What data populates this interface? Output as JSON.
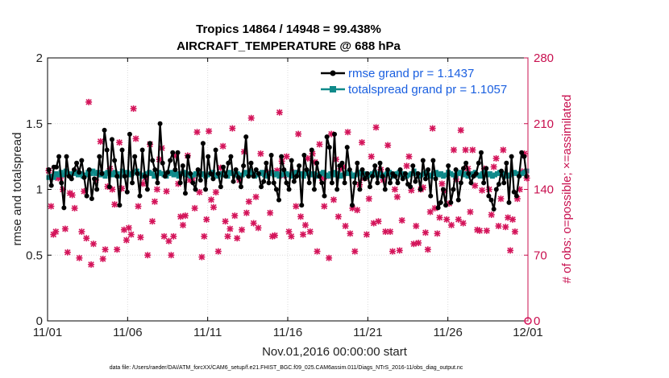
{
  "chart_data": {
    "type": "line",
    "title": "Tropics 14864 / 14948 = 99.438%",
    "subtitle": "AIRCRAFT_TEMPERATURE @ 688 hPa",
    "xlabel": "Nov.01,2016 00:00:00 start",
    "ylabel": "rmse and totalspread",
    "y2label": "# of obs: o=possible; ×=assimilated",
    "footer": "data file: /Users/raeder/DAI/ATM_forcXX/CAM6_setup/f.e21.FHIST_BGC.f09_025.CAM6assim.011/Diags_NTrS_2016-11/obs_diag_output.nc",
    "xlim": [
      0,
      30
    ],
    "ylim": [
      0,
      2
    ],
    "y2lim": [
      0,
      280
    ],
    "x_ticks": [
      0,
      5,
      10,
      15,
      20,
      25,
      30
    ],
    "x_tick_labels": [
      "11/01",
      "11/06",
      "11/11",
      "11/16",
      "11/21",
      "11/26",
      "12/01"
    ],
    "y_ticks": [
      0,
      0.5,
      1,
      1.5,
      2
    ],
    "y_tick_labels": [
      "0",
      "0.5",
      "1",
      "1.5",
      "2"
    ],
    "y2_ticks": [
      0,
      70,
      140,
      210,
      280
    ],
    "y2_tick_labels": [
      "0",
      "70",
      "140",
      "210",
      "280"
    ],
    "colors": {
      "rmse": "#000000",
      "spread": "#0f8a8a",
      "obs": "#d4145a",
      "legend_text": "#1a5fe0"
    },
    "series": [
      {
        "name": "rmse grand pr = 1.1437",
        "axis": "left",
        "values": [
          1.15,
          1.03,
          1.17,
          1.17,
          1.25,
          1.05,
          0.86,
          1.25,
          1.1,
          1.08,
          1.15,
          1.2,
          1.13,
          1.22,
          1.09,
          0.95,
          1.15,
          0.93,
          1.08,
          1.0,
          1.25,
          1.12,
          1.45,
          1.3,
          1.02,
          1.38,
          1.22,
          1.1,
          0.88,
          1.3,
          1.1,
          0.98,
          1.42,
          1.05,
          1.25,
          1.12,
          0.95,
          1.3,
          1.1,
          1.0,
          1.35,
          1.22,
          1.15,
          1.05,
          1.5,
          1.2,
          1.1,
          1.13,
          1.22,
          1.28,
          1.15,
          1.28,
          1.05,
          1.18,
          0.97,
          1.25,
          1.12,
          1.05,
          1.0,
          1.15,
          1.07,
          1.35,
          1.0,
          1.25,
          1.12,
          1.08,
          1.3,
          1.12,
          1.02,
          1.17,
          1.1,
          1.2,
          1.25,
          1.06,
          1.15,
          1.09,
          1.02,
          1.18,
          1.4,
          1.1,
          1.2,
          1.1,
          1.15,
          1.12,
          1.02,
          1.06,
          1.2,
          1.05,
          1.26,
          1.05,
          1.0,
          0.92,
          1.25,
          1.15,
          1.05,
          1.0,
          1.22,
          1.06,
          1.1,
          1.18,
          0.88,
          1.26,
          1.15,
          1.05,
          1.3,
          1.0,
          1.2,
          1.1,
          1.05,
          0.95,
          1.4,
          1.32,
          1.05,
          1.42,
          1.0,
          1.18,
          1.2,
          1.05,
          1.32,
          1.15,
          0.88,
          1.05,
          1.2,
          1.0,
          1.15,
          1.08,
          1.12,
          1.02,
          1.1,
          1.18,
          1.05,
          1.2,
          1.1,
          1.0,
          1.15,
          1.05,
          1.12,
          1.1,
          1.05,
          1.15,
          1.08,
          1.12,
          1.04,
          1.02,
          1.18,
          1.06,
          1.12,
          1.0,
          1.22,
          1.08,
          1.15,
          0.95,
          1.22,
          1.08,
          0.86,
          0.9,
          1.0,
          0.88,
          1.18,
          0.9,
          1.0,
          1.15,
          0.92,
          1.05,
          1.16,
          1.2,
          1.12,
          1.05,
          1.1,
          1.12,
          1.2,
          1.28,
          1.05,
          1.16,
          0.95,
          0.92,
          0.85,
          1.0,
          1.04,
          1.14,
          1.05,
          1.2,
          0.9,
          1.25,
          0.98,
          0.95,
          1.1,
          1.28,
          1.25,
          1.1
        ]
      },
      {
        "name": "totalspread grand pr = 1.1057",
        "axis": "left",
        "values": [
          1.09,
          1.1,
          1.09,
          1.12,
          1.11,
          1.13,
          1.11,
          1.14,
          1.12,
          1.1,
          1.12,
          1.13,
          1.11,
          1.12,
          1.1,
          1.11,
          1.13,
          1.12,
          1.14,
          1.12,
          1.13,
          1.11,
          1.12,
          1.1,
          1.13,
          1.12,
          1.11,
          1.13,
          1.12,
          1.1,
          1.14,
          1.12,
          1.13,
          1.11,
          1.12,
          1.13,
          1.14,
          1.12,
          1.1,
          1.11,
          1.12,
          1.13,
          1.12,
          1.1,
          1.11,
          1.13,
          1.12,
          1.11,
          1.1,
          1.12,
          1.13,
          1.11,
          1.12,
          1.1,
          1.12,
          1.13,
          1.11,
          1.12,
          1.1,
          1.11,
          1.12,
          1.13,
          1.11,
          1.12,
          1.1,
          1.11,
          1.12,
          1.13,
          1.11,
          1.1,
          1.12,
          1.11,
          1.12,
          1.1,
          1.13,
          1.12,
          1.11,
          1.12,
          1.1,
          1.11,
          1.13,
          1.12,
          1.14,
          1.12,
          1.1,
          1.11,
          1.12,
          1.13,
          1.11,
          1.1,
          1.12,
          1.13,
          1.11,
          1.12,
          1.1,
          1.11,
          1.13,
          1.12,
          1.11,
          1.1,
          1.12,
          1.13,
          1.11,
          1.12,
          1.1,
          1.12,
          1.13,
          1.11,
          1.12,
          1.1,
          1.11,
          1.12,
          1.13,
          1.11,
          1.1,
          1.12,
          1.13,
          1.11,
          1.12,
          1.1,
          1.11,
          1.12,
          1.13,
          1.12,
          1.1,
          1.11,
          1.12,
          1.13,
          1.11,
          1.12,
          1.1,
          1.11,
          1.12,
          1.13,
          1.11,
          1.12,
          1.1,
          1.11,
          1.12,
          1.13,
          1.11,
          1.1,
          1.12,
          1.13,
          1.11,
          1.12,
          1.1,
          1.11,
          1.12,
          1.14,
          1.12,
          1.1,
          1.11,
          1.12,
          1.13,
          1.11,
          1.1,
          1.12,
          1.13,
          1.11,
          1.12,
          1.1,
          1.11,
          1.13,
          1.12,
          1.11,
          1.1,
          1.12,
          1.13,
          1.11,
          1.12,
          1.1,
          1.11,
          1.12,
          1.13,
          1.11,
          1.1,
          1.12,
          1.13,
          1.11,
          1.12,
          1.1,
          1.11,
          1.12,
          1.13,
          1.11,
          1.12,
          1.1,
          1.11,
          1.12,
          1.13,
          1.12,
          1.11,
          1.12,
          1.13,
          1.14
        ]
      },
      {
        "name": "# of obs (possible / assimilated)",
        "axis": "right",
        "values": [
          160,
          122,
          92,
          95,
          152,
          152,
          140,
          98,
          73,
          136,
          134,
          120,
          158,
          67,
          95,
          138,
          88,
          233,
          60,
          82,
          150,
          158,
          191,
          66,
          76,
          143,
          162,
          140,
          124,
          76,
          190,
          141,
          97,
          86,
          99,
          92,
          226,
          194,
          122,
          89,
          146,
          152,
          70,
          188,
          106,
          127,
          140,
          172,
          184,
          90,
          138,
          85,
          70,
          90,
          176,
          146,
          111,
          102,
          112,
          176,
          150,
          152,
          120,
          201,
          137,
          68,
          90,
          108,
          202,
          129,
          121,
          137,
          74,
          163,
          186,
          106,
          90,
          98,
          205,
          112,
          88,
          150,
          97,
          180,
          115,
          127,
          216,
          104,
          132,
          99,
          178,
          157,
          158,
          158,
          115,
          90,
          91,
          160,
          222,
          170,
          155,
          175,
          95,
          90,
          158,
          122,
          199,
          111,
          92,
          102,
          173,
          95,
          178,
          169,
          74,
          188,
          152,
          122,
          154,
          67,
          199,
          129,
          172,
          111,
          162,
          164,
          101,
          201,
          93,
          120,
          74,
          118,
          145,
          190,
          152,
          92,
          130,
          175,
          104,
          206,
          106,
          161,
          150,
          95,
          187,
          95,
          74,
          140,
          132,
          75,
          107,
          154,
          165,
          175,
          139,
          82,
          101,
          83,
          140,
          142,
          94,
          76,
          116,
          205,
          120,
          93,
          110,
          146,
          138,
          108,
          125,
          102,
          182,
          151,
          108,
          203,
          104,
          182,
          162,
          116,
          182,
          144,
          97,
          96,
          139,
          162,
          96,
          140,
          113,
          164,
          173,
          101,
          130,
          182,
          100,
          110,
          75,
          108,
          95,
          130,
          140,
          159,
          178,
          152
        ]
      }
    ]
  }
}
